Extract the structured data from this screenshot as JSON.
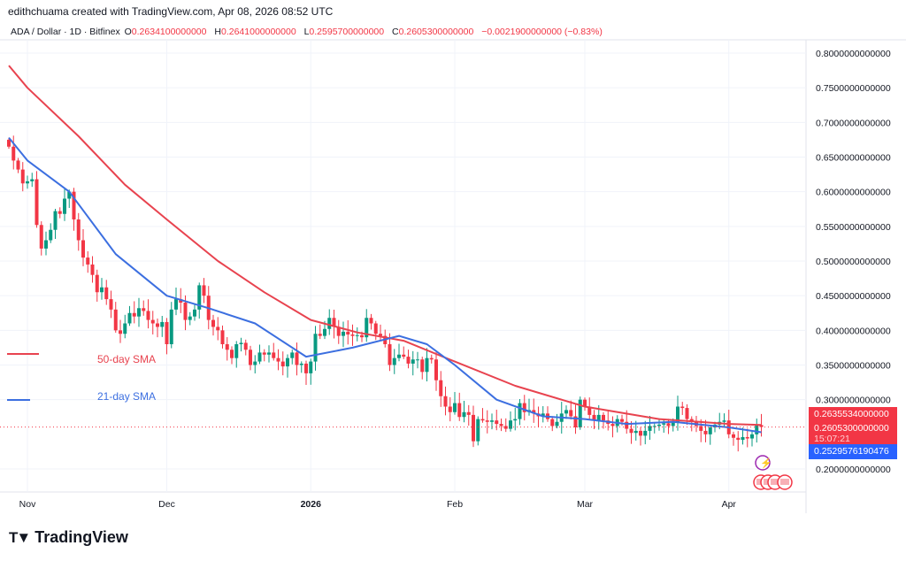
{
  "credit": "edithchuama created with TradingView.com, Apr 08, 2026 08:52 UTC",
  "legend": {
    "symbol": "ADA / Dollar · 1D · Bitfinex",
    "o_label": "O",
    "o": "0.2634100000000",
    "h_label": "H",
    "h": "0.2641000000000",
    "l_label": "L",
    "l": "0.2595700000000",
    "c_label": "C",
    "c": "0.2605300000000",
    "change": "−0.0021900000000 (−0.83%)"
  },
  "price_labels": {
    "sma50": "0.2635534000000",
    "close": "0.2605300000000",
    "countdown": "15:07:21",
    "sma21": "0.2529576190476"
  },
  "sma_legend": {
    "sma50": "50-day SMA",
    "sma21": "21-day SMA"
  },
  "logo": "TradingView",
  "colors": {
    "up": "#089981",
    "down": "#f23645",
    "sma50": "#e8434f",
    "sma21": "#3c6fe0",
    "sma21_box": "#2962ff"
  },
  "chart_data": {
    "type": "candlestick",
    "start_date": "2025-10-28",
    "closes": [
      0.665,
      0.645,
      0.632,
      0.612,
      0.615,
      0.618,
      0.552,
      0.518,
      0.53,
      0.545,
      0.572,
      0.568,
      0.59,
      0.6,
      0.56,
      0.53,
      0.505,
      0.495,
      0.48,
      0.455,
      0.462,
      0.445,
      0.43,
      0.4,
      0.395,
      0.41,
      0.425,
      0.42,
      0.432,
      0.428,
      0.415,
      0.41,
      0.405,
      0.412,
      0.38,
      0.43,
      0.445,
      0.44,
      0.415,
      0.42,
      0.43,
      0.465,
      0.45,
      0.415,
      0.405,
      0.4,
      0.38,
      0.372,
      0.36,
      0.38,
      0.382,
      0.372,
      0.35,
      0.355,
      0.368,
      0.365,
      0.368,
      0.36,
      0.355,
      0.348,
      0.36,
      0.368,
      0.35,
      0.352,
      0.338,
      0.355,
      0.395,
      0.392,
      0.402,
      0.418,
      0.405,
      0.392,
      0.398,
      0.394,
      0.392,
      0.393,
      0.39,
      0.418,
      0.41,
      0.395,
      0.392,
      0.38,
      0.35,
      0.36,
      0.365,
      0.362,
      0.352,
      0.358,
      0.358,
      0.34,
      0.36,
      0.358,
      0.328,
      0.305,
      0.29,
      0.282,
      0.295,
      0.275,
      0.282,
      0.278,
      0.24,
      0.272,
      0.27,
      0.268,
      0.27,
      0.265,
      0.262,
      0.258,
      0.27,
      0.272,
      0.295,
      0.282,
      0.285,
      0.28,
      0.276,
      0.28,
      0.272,
      0.262,
      0.268,
      0.28,
      0.285,
      0.276,
      0.26,
      0.3,
      0.29,
      0.278,
      0.27,
      0.278,
      0.27,
      0.265,
      0.262,
      0.272,
      0.268,
      0.258,
      0.252,
      0.255,
      0.248,
      0.255,
      0.262,
      0.262,
      0.264,
      0.266,
      0.262,
      0.268,
      0.29,
      0.288,
      0.272,
      0.268,
      0.262,
      0.255,
      0.25,
      0.26,
      0.264,
      0.268,
      0.27,
      0.25,
      0.245,
      0.242,
      0.246,
      0.244,
      0.25,
      0.2634,
      0.26053
    ],
    "sma50": [
      [
        "2025-10-28",
        0.782
      ],
      [
        "2025-11-01",
        0.75
      ],
      [
        "2025-11-12",
        0.68
      ],
      [
        "2025-11-22",
        0.61
      ],
      [
        "2025-12-01",
        0.56
      ],
      [
        "2025-12-12",
        0.5
      ],
      [
        "2025-12-22",
        0.455
      ],
      [
        "2026-01-01",
        0.415
      ],
      [
        "2026-01-11",
        0.397
      ],
      [
        "2026-01-21",
        0.385
      ],
      [
        "2026-02-01",
        0.355
      ],
      [
        "2026-02-14",
        0.32
      ],
      [
        "2026-03-01",
        0.29
      ],
      [
        "2026-03-17",
        0.272
      ],
      [
        "2026-04-01",
        0.265
      ],
      [
        "2026-04-08",
        0.2636
      ]
    ],
    "sma21": [
      [
        "2025-10-28",
        0.678
      ],
      [
        "2025-11-01",
        0.645
      ],
      [
        "2025-11-10",
        0.6
      ],
      [
        "2025-11-20",
        0.51
      ],
      [
        "2025-12-01",
        0.45
      ],
      [
        "2025-12-10",
        0.432
      ],
      [
        "2025-12-20",
        0.41
      ],
      [
        "2025-12-31",
        0.362
      ],
      [
        "2026-01-10",
        0.375
      ],
      [
        "2026-01-20",
        0.392
      ],
      [
        "2026-01-26",
        0.38
      ],
      [
        "2026-02-01",
        0.35
      ],
      [
        "2026-02-10",
        0.3
      ],
      [
        "2026-02-20",
        0.276
      ],
      [
        "2026-03-01",
        0.272
      ],
      [
        "2026-03-10",
        0.265
      ],
      [
        "2026-03-20",
        0.268
      ],
      [
        "2026-04-01",
        0.26
      ],
      [
        "2026-04-08",
        0.253
      ]
    ],
    "y_ticks": [
      "0.8000000000000",
      "0.7500000000000",
      "0.7000000000000",
      "0.6500000000000",
      "0.6000000000000",
      "0.5500000000000",
      "0.5000000000000",
      "0.4500000000000",
      "0.4000000000000",
      "0.3500000000000",
      "0.3000000000000",
      "0.2000000000000"
    ],
    "ylim": [
      0.2,
      0.8
    ],
    "x_ticks": [
      {
        "label": "Nov",
        "date": "2025-11-01"
      },
      {
        "label": "Dec",
        "date": "2025-12-01"
      },
      {
        "label": "2026",
        "date": "2026-01-01"
      },
      {
        "label": "Feb",
        "date": "2026-02-01"
      },
      {
        "label": "Mar",
        "date": "2026-03-01"
      },
      {
        "label": "Apr",
        "date": "2026-04-01"
      }
    ],
    "grid": true
  }
}
